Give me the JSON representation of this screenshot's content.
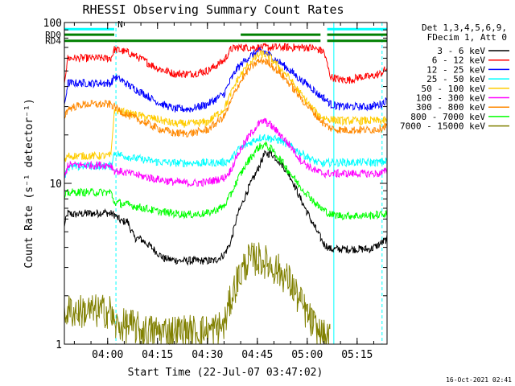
{
  "chart_data": {
    "type": "line",
    "title": "RHESSI Observing Summary Count Rates",
    "xlabel": "Start Time (22-Jul-07 03:47:02)",
    "ylabel": "Count Rate (s⁻¹ detector⁻¹)",
    "yscale": "log",
    "ylim": [
      1,
      100
    ],
    "xlim_minutes": [
      0,
      97
    ],
    "x_ticks": [
      {
        "minute": 13,
        "label": "04:00"
      },
      {
        "minute": 28,
        "label": "04:15"
      },
      {
        "minute": 43,
        "label": "04:30"
      },
      {
        "minute": 58,
        "label": "04:45"
      },
      {
        "minute": 73,
        "label": "05:00"
      },
      {
        "minute": 88,
        "label": "05:15"
      }
    ],
    "y_ticks": [
      {
        "value": 1,
        "label": "1"
      },
      {
        "value": 10,
        "label": "10"
      },
      {
        "value": 100,
        "label": "100"
      }
    ],
    "legend_header": [
      "Det 1,3,4,5,6,9,",
      "FDecim 1, Att 0"
    ],
    "legend_position": "right",
    "series": [
      {
        "name": "3 - 6 keV",
        "color": "#000000",
        "x": [
          0,
          1,
          3,
          6,
          9,
          12,
          15,
          17,
          19,
          21,
          23,
          25,
          30,
          35,
          40,
          45,
          48,
          50,
          52,
          55,
          58,
          60,
          62,
          65,
          68,
          71,
          74,
          76,
          78,
          80,
          83,
          86,
          89,
          92,
          95,
          97
        ],
        "y": [
          5.5,
          6.5,
          6.4,
          6.5,
          6.5,
          6.6,
          6.4,
          5.8,
          5.8,
          4.6,
          4.5,
          4.2,
          3.4,
          3.3,
          3.3,
          3.3,
          3.6,
          4.3,
          6.3,
          9,
          12,
          15,
          15.5,
          13.5,
          11,
          8,
          6,
          5,
          4.2,
          3.9,
          3.9,
          3.9,
          3.9,
          3.9,
          4.2,
          4.5
        ]
      },
      {
        "name": "6 - 12 keV",
        "color": "#ff0000",
        "x": [
          0,
          1,
          3,
          6,
          9,
          12,
          14,
          15,
          17,
          20,
          24,
          28,
          33,
          38,
          43,
          48,
          50,
          52,
          55,
          58,
          60,
          62,
          65,
          68,
          71,
          74,
          76,
          78,
          80,
          83,
          86,
          89,
          92,
          95,
          97
        ],
        "y": [
          43,
          60,
          60,
          60,
          60,
          60,
          60,
          68,
          67,
          64,
          58,
          52,
          48,
          48,
          50,
          58,
          68,
          70,
          70,
          70,
          70,
          70,
          70,
          70,
          70,
          70,
          68,
          66,
          46,
          44,
          44,
          46,
          46,
          48,
          52
        ]
      },
      {
        "name": "12 - 25 keV",
        "color": "#0000ff",
        "x": [
          0,
          1,
          3,
          6,
          9,
          12,
          14,
          15,
          17,
          20,
          24,
          28,
          33,
          38,
          43,
          48,
          50,
          52,
          55,
          58,
          60,
          62,
          65,
          68,
          71,
          74,
          76,
          78,
          80,
          83,
          86,
          89,
          92,
          95,
          97
        ],
        "y": [
          30,
          42,
          42,
          42,
          42,
          42,
          42,
          46,
          44,
          40,
          36,
          32,
          29,
          29,
          31,
          36,
          44,
          52,
          60,
          66,
          66,
          62,
          56,
          50,
          44,
          40,
          36,
          34,
          31,
          30,
          30,
          30,
          30,
          31,
          33
        ]
      },
      {
        "name": "25 - 50 keV",
        "color": "#00ffff",
        "x": [
          0,
          1,
          3,
          6,
          9,
          12,
          14,
          15,
          17,
          20,
          24,
          28,
          33,
          38,
          43,
          48,
          50,
          52,
          55,
          58,
          60,
          62,
          65,
          68,
          71,
          74,
          76,
          78,
          80,
          83,
          86,
          89,
          92,
          95,
          97
        ],
        "y": [
          11,
          12.5,
          12.6,
          12.8,
          12.8,
          12.8,
          12.8,
          15.5,
          15,
          14.5,
          14,
          13.6,
          13.4,
          13.4,
          13.4,
          13.5,
          14,
          16,
          17.5,
          19,
          19.5,
          19,
          18.5,
          17,
          15.5,
          14.2,
          13.5,
          13.2,
          13.5,
          13.5,
          13.5,
          13.5,
          13.5,
          13.5,
          13.8
        ]
      },
      {
        "name": "50 - 100 keV",
        "color": "#ffcc00",
        "x": [
          0,
          1,
          3,
          6,
          9,
          12,
          14,
          15,
          17,
          20,
          24,
          28,
          33,
          38,
          43,
          48,
          50,
          52,
          55,
          58,
          60,
          62,
          65,
          68,
          71,
          74,
          76,
          78,
          80,
          83,
          86,
          89,
          92,
          95,
          97
        ],
        "y": [
          13.5,
          14.8,
          14.8,
          14.8,
          14.8,
          14.8,
          14.8,
          28.5,
          28,
          27,
          26,
          25,
          23.5,
          23.5,
          24,
          29,
          36,
          44,
          54,
          62,
          64,
          60,
          52,
          44,
          36,
          30,
          27,
          25.5,
          25,
          24.5,
          24.5,
          24.5,
          24.5,
          24.5,
          24.5
        ]
      },
      {
        "name": "100 - 300 keV",
        "color": "#ff00ff",
        "x": [
          0,
          1,
          3,
          6,
          9,
          12,
          14,
          15,
          17,
          20,
          24,
          28,
          33,
          38,
          43,
          48,
          50,
          52,
          55,
          58,
          60,
          62,
          65,
          68,
          71,
          74,
          76,
          78,
          80,
          83,
          86,
          89,
          92,
          95,
          97
        ],
        "y": [
          10.5,
          13,
          13,
          13,
          13,
          13,
          13,
          12,
          11.8,
          11.5,
          11,
          10.6,
          10.2,
          10,
          10.2,
          10.8,
          12,
          15,
          19,
          23,
          24.5,
          23,
          20,
          17,
          14,
          12.5,
          11.8,
          11.5,
          11.5,
          11.5,
          11.5,
          11.5,
          11.5,
          11.5,
          12
        ]
      },
      {
        "name": "300 - 800 keV",
        "color": "#ff8800",
        "x": [
          0,
          1,
          3,
          6,
          9,
          12,
          14,
          15,
          17,
          20,
          24,
          28,
          33,
          38,
          43,
          48,
          50,
          52,
          55,
          58,
          60,
          62,
          65,
          68,
          71,
          74,
          76,
          78,
          80,
          83,
          86,
          89,
          92,
          95,
          97
        ],
        "y": [
          26,
          29,
          30,
          31,
          31,
          31,
          31,
          30,
          28,
          26,
          24,
          22,
          20.5,
          20.5,
          21.5,
          26,
          32,
          40,
          50,
          57,
          58,
          55,
          48,
          41,
          34,
          29,
          26,
          23.5,
          22,
          21.5,
          21.5,
          21.5,
          21.5,
          22,
          23
        ]
      },
      {
        "name": "800 - 7000 keV",
        "color": "#00ff00",
        "x": [
          0,
          1,
          3,
          6,
          9,
          12,
          14,
          15,
          17,
          20,
          24,
          28,
          33,
          38,
          43,
          48,
          50,
          52,
          55,
          58,
          60,
          62,
          65,
          68,
          71,
          74,
          76,
          78,
          80,
          83,
          86,
          89,
          92,
          95,
          97
        ],
        "y": [
          8.2,
          8.7,
          8.8,
          8.8,
          8.8,
          8.8,
          8.8,
          7.6,
          7.5,
          7.3,
          7,
          6.7,
          6.5,
          6.4,
          6.5,
          7.2,
          8.5,
          10.5,
          13.5,
          16.5,
          17.5,
          16.5,
          14,
          11.5,
          9.5,
          8.2,
          7.3,
          6.8,
          6.4,
          6.3,
          6.3,
          6.3,
          6.3,
          6.4,
          6.5
        ]
      },
      {
        "name": "7000 - 15000 keV",
        "color": "#808000",
        "x": [
          0,
          3,
          6,
          9,
          12,
          14,
          15,
          17,
          20,
          24,
          28,
          33,
          38,
          43,
          48,
          50,
          52,
          55,
          58,
          60,
          62,
          65,
          68,
          71,
          74,
          76,
          78,
          80
        ],
        "y": [
          1.6,
          1.6,
          1.6,
          1.6,
          1.6,
          1.6,
          1.3,
          1.3,
          1.3,
          1.2,
          1.2,
          1.2,
          1.2,
          1.2,
          1.3,
          1.9,
          2.5,
          3.3,
          3.4,
          3.3,
          3.1,
          2.8,
          2.4,
          1.8,
          1.4,
          1.2,
          1.1,
          1.05
        ]
      }
    ],
    "state_bars": [
      {
        "label": "",
        "color": "#00ffff",
        "y": 91,
        "segments": [
          [
            0,
            15
          ],
          [
            79,
            97
          ]
        ]
      },
      {
        "label": "RD0",
        "color": "#008000",
        "y": 84,
        "segments": [
          [
            0,
            15
          ],
          [
            53,
            77
          ],
          [
            79,
            97
          ]
        ]
      },
      {
        "label": "RD4",
        "color": "#008000",
        "y": 77,
        "segments": [
          [
            0,
            15
          ],
          [
            15,
            53
          ],
          [
            53,
            77
          ],
          [
            79,
            97
          ]
        ]
      }
    ],
    "attenuator_marker": {
      "label": "N",
      "minute": 16
    },
    "vertical_markers": [
      {
        "minute": 0,
        "style": "solid",
        "color": "#00ffff"
      },
      {
        "minute": 15.5,
        "style": "dashed",
        "color": "#00ffff"
      },
      {
        "minute": 81,
        "style": "solid",
        "color": "#00ffff"
      },
      {
        "minute": 95.5,
        "style": "dashed",
        "color": "#00ffff"
      }
    ],
    "timestamp": "16-Oct-2021 02:41"
  }
}
